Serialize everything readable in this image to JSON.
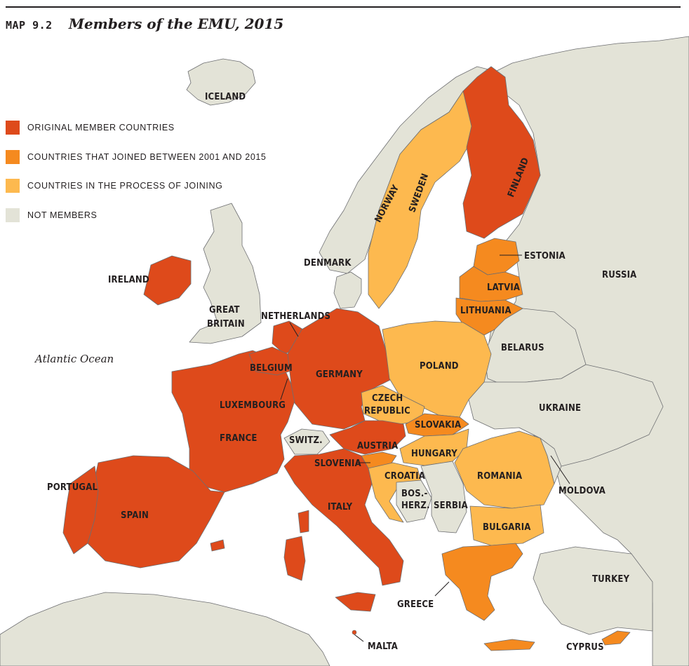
{
  "header": {
    "map_number": "MAP 9.2",
    "title": "Members of the EMU, 2015"
  },
  "colors": {
    "original": "#de4a1b",
    "joined": "#f58a1f",
    "joining": "#fdb94f",
    "not_member": "#e3e3d7",
    "water": "#ffffff",
    "border": "#6d6e71"
  },
  "legend": [
    {
      "label": "ORIGINAL MEMBER COUNTRIES",
      "category": "original"
    },
    {
      "label": "COUNTRIES THAT JOINED BETWEEN 2001 AND 2015",
      "category": "joined"
    },
    {
      "label": "COUNTRIES IN THE PROCESS OF JOINING",
      "category": "joining"
    },
    {
      "label": "NOT MEMBERS",
      "category": "not_member"
    }
  ],
  "ocean_label": "Atlantic Ocean",
  "labels": {
    "iceland": "ICELAND",
    "norway": "NORWAY",
    "sweden": "SWEDEN",
    "finland": "FINLAND",
    "estonia": "ESTONIA",
    "russia": "RUSSIA",
    "latvia": "LATVIA",
    "lithuania": "LITHUANIA",
    "denmark": "DENMARK",
    "ireland": "IRELAND",
    "great_britain_1": "GREAT",
    "great_britain_2": "BRITAIN",
    "netherlands": "NETHERLANDS",
    "belgium": "BELGIUM",
    "germany": "GERMANY",
    "poland": "POLAND",
    "belarus": "BELARUS",
    "luxembourg": "LUXEMBOURG",
    "czech_1": "CZECH",
    "czech_2": "REPUBLIC",
    "ukraine": "UKRAINE",
    "slovakia": "SLOVAKIA",
    "france": "FRANCE",
    "switz": "SWITZ.",
    "austria": "AUSTRIA",
    "hungary": "HUNGARY",
    "slovenia": "SLOVENIA",
    "croatia": "CROATIA",
    "romania": "ROMANIA",
    "moldova": "MOLDOVA",
    "portugal": "PORTUGAL",
    "bos_1": "BOS.-",
    "bos_2": "HERZ.",
    "serbia": "SERBIA",
    "spain": "SPAIN",
    "italy": "ITALY",
    "bulgaria": "BULGARIA",
    "turkey": "TURKEY",
    "greece": "GREECE",
    "malta": "MALTA",
    "cyprus": "CYPRUS"
  }
}
